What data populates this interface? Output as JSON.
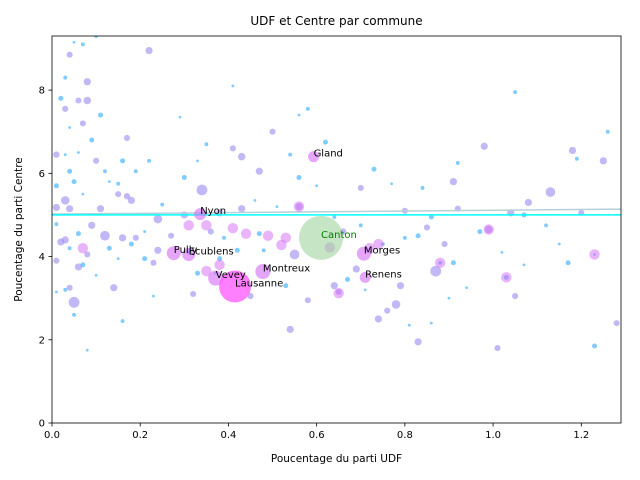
{
  "chart_data": {
    "type": "scatter",
    "title": "UDF et Centre par commune",
    "xlabel": "Poucentage du parti UDF",
    "ylabel": "Poucentage du parti Centre",
    "xlim": [
      0,
      1.29
    ],
    "ylim": [
      0,
      9.3
    ],
    "xticks": [
      "0.0",
      "0.2",
      "0.4",
      "0.6",
      "0.8",
      "1.0",
      "1.2"
    ],
    "yticks": [
      "0",
      "2",
      "4",
      "6",
      "8"
    ],
    "grid": false,
    "colors": {
      "small": "#55bbff",
      "medium": "#9a88f0",
      "large": "#d36af6",
      "largest": "#ff55ff",
      "canton": "#9fd49f",
      "reference_line": "#00ffff",
      "trend_line": "#b7d0d8",
      "canton_label": "#008000"
    },
    "reference_line": {
      "y": 5.0
    },
    "trend_line": {
      "x": [
        0,
        1.29
      ],
      "y": [
        5.02,
        5.14
      ]
    },
    "canton": {
      "label": "Canton",
      "x": 0.61,
      "y": 4.45
    },
    "labeled_points": [
      {
        "label": "Gland",
        "x": 0.593,
        "y": 6.4
      },
      {
        "label": "Nyon",
        "x": 0.336,
        "y": 5.02
      },
      {
        "label": "Pully",
        "x": 0.276,
        "y": 4.08
      },
      {
        "label": "Ecublens",
        "x": 0.31,
        "y": 4.05
      },
      {
        "label": "Vevey",
        "x": 0.371,
        "y": 3.48
      },
      {
        "label": "Montreux",
        "x": 0.478,
        "y": 3.64
      },
      {
        "label": "Lausanne",
        "x": 0.415,
        "y": 3.28
      },
      {
        "label": "Morges",
        "x": 0.707,
        "y": 4.07
      },
      {
        "label": "Renens",
        "x": 0.71,
        "y": 3.5
      }
    ],
    "points": [
      [
        0.01,
        6.45
      ],
      [
        0.01,
        5.7
      ],
      [
        0.01,
        5.18
      ],
      [
        0.01,
        4.78
      ],
      [
        0.01,
        3.9
      ],
      [
        0.01,
        3.15
      ],
      [
        0.02,
        7.8
      ],
      [
        0.02,
        4.35
      ],
      [
        0.03,
        8.3
      ],
      [
        0.03,
        7.55
      ],
      [
        0.03,
        6.45
      ],
      [
        0.03,
        5.35
      ],
      [
        0.03,
        4.4
      ],
      [
        0.03,
        3.2
      ],
      [
        0.04,
        8.85
      ],
      [
        0.04,
        7.1
      ],
      [
        0.04,
        6.05
      ],
      [
        0.04,
        5.15
      ],
      [
        0.04,
        4.2
      ],
      [
        0.04,
        3.25
      ],
      [
        0.05,
        9.15
      ],
      [
        0.05,
        5.8
      ],
      [
        0.05,
        2.9
      ],
      [
        0.05,
        2.6
      ],
      [
        0.06,
        7.75
      ],
      [
        0.06,
        6.5
      ],
      [
        0.06,
        4.55
      ],
      [
        0.06,
        3.75
      ],
      [
        0.07,
        9.1
      ],
      [
        0.07,
        7.2
      ],
      [
        0.07,
        5.5
      ],
      [
        0.07,
        3.8
      ],
      [
        0.08,
        8.2
      ],
      [
        0.08,
        7.75
      ],
      [
        0.08,
        4.05
      ],
      [
        0.08,
        1.75
      ],
      [
        0.09,
        6.8
      ],
      [
        0.09,
        4.75
      ],
      [
        0.1,
        9.3
      ],
      [
        0.1,
        6.3
      ],
      [
        0.1,
        3.55
      ],
      [
        0.11,
        7.4
      ],
      [
        0.11,
        5.15
      ],
      [
        0.12,
        6.05
      ],
      [
        0.12,
        4.5
      ],
      [
        0.13,
        5.8
      ],
      [
        0.13,
        4.2
      ],
      [
        0.14,
        3.25
      ],
      [
        0.15,
        5.75
      ],
      [
        0.15,
        5.5
      ],
      [
        0.15,
        3.95
      ],
      [
        0.16,
        6.3
      ],
      [
        0.16,
        4.45
      ],
      [
        0.16,
        2.45
      ],
      [
        0.17,
        6.85
      ],
      [
        0.17,
        5.45
      ],
      [
        0.18,
        4.3
      ],
      [
        0.18,
        5.35
      ],
      [
        0.19,
        6.05
      ],
      [
        0.19,
        4.45
      ],
      [
        0.21,
        4.6
      ],
      [
        0.21,
        3.95
      ],
      [
        0.22,
        8.95
      ],
      [
        0.22,
        6.3
      ],
      [
        0.23,
        3.85
      ],
      [
        0.23,
        3.05
      ],
      [
        0.24,
        4.9
      ],
      [
        0.24,
        4.15
      ],
      [
        0.25,
        5.25
      ],
      [
        0.27,
        4.5
      ],
      [
        0.29,
        7.35
      ],
      [
        0.3,
        5.9
      ],
      [
        0.3,
        5.0
      ],
      [
        0.31,
        4.1
      ],
      [
        0.32,
        3.1
      ],
      [
        0.33,
        6.3
      ],
      [
        0.33,
        3.6
      ],
      [
        0.34,
        5.6
      ],
      [
        0.35,
        6.7
      ],
      [
        0.36,
        4.6
      ],
      [
        0.37,
        3.6
      ],
      [
        0.38,
        3.95
      ],
      [
        0.38,
        5.05
      ],
      [
        0.39,
        4.45
      ],
      [
        0.41,
        6.6
      ],
      [
        0.41,
        8.1
      ],
      [
        0.42,
        4.15
      ],
      [
        0.43,
        5.15
      ],
      [
        0.43,
        6.4
      ],
      [
        0.45,
        3.05
      ],
      [
        0.46,
        5.35
      ],
      [
        0.47,
        4.55
      ],
      [
        0.47,
        6.05
      ],
      [
        0.48,
        4.15
      ],
      [
        0.5,
        7.0
      ],
      [
        0.51,
        5.2
      ],
      [
        0.53,
        3.3
      ],
      [
        0.54,
        2.25
      ],
      [
        0.54,
        6.45
      ],
      [
        0.55,
        4.05
      ],
      [
        0.56,
        7.4
      ],
      [
        0.56,
        5.9
      ],
      [
        0.56,
        5.2
      ],
      [
        0.58,
        7.55
      ],
      [
        0.58,
        2.95
      ],
      [
        0.6,
        5.7
      ],
      [
        0.62,
        6.75
      ],
      [
        0.64,
        3.3
      ],
      [
        0.64,
        4.95
      ],
      [
        0.65,
        3.15
      ],
      [
        0.66,
        4.6
      ],
      [
        0.67,
        3.45
      ],
      [
        0.69,
        3.7
      ],
      [
        0.7,
        4.75
      ],
      [
        0.7,
        5.65
      ],
      [
        0.71,
        3.2
      ],
      [
        0.73,
        6.1
      ],
      [
        0.74,
        2.5
      ],
      [
        0.75,
        4.3
      ],
      [
        0.76,
        2.7
      ],
      [
        0.77,
        5.75
      ],
      [
        0.78,
        2.85
      ],
      [
        0.79,
        3.3
      ],
      [
        0.8,
        4.45
      ],
      [
        0.8,
        5.1
      ],
      [
        0.81,
        2.35
      ],
      [
        0.83,
        4.5
      ],
      [
        0.83,
        1.95
      ],
      [
        0.84,
        5.65
      ],
      [
        0.85,
        4.7
      ],
      [
        0.86,
        2.4
      ],
      [
        0.86,
        4.95
      ],
      [
        0.87,
        3.65
      ],
      [
        0.88,
        3.85
      ],
      [
        0.89,
        4.3
      ],
      [
        0.9,
        3.0
      ],
      [
        0.91,
        3.85
      ],
      [
        0.91,
        5.8
      ],
      [
        0.92,
        6.25
      ],
      [
        0.92,
        5.15
      ],
      [
        0.94,
        3.25
      ],
      [
        0.97,
        4.6
      ],
      [
        0.98,
        6.65
      ],
      [
        0.99,
        4.65
      ],
      [
        1.01,
        1.8
      ],
      [
        1.02,
        4.1
      ],
      [
        1.03,
        3.5
      ],
      [
        1.04,
        5.05
      ],
      [
        1.05,
        7.95
      ],
      [
        1.05,
        3.05
      ],
      [
        1.07,
        3.8
      ],
      [
        1.07,
        5.0
      ],
      [
        1.08,
        5.3
      ],
      [
        1.12,
        4.75
      ],
      [
        1.13,
        5.55
      ],
      [
        1.15,
        4.3
      ],
      [
        1.17,
        3.85
      ],
      [
        1.18,
        6.55
      ],
      [
        1.19,
        6.35
      ],
      [
        1.2,
        5.05
      ],
      [
        1.23,
        4.05
      ],
      [
        1.23,
        1.85
      ],
      [
        1.25,
        6.3
      ],
      [
        1.26,
        7.0
      ],
      [
        1.28,
        2.4
      ]
    ]
  }
}
